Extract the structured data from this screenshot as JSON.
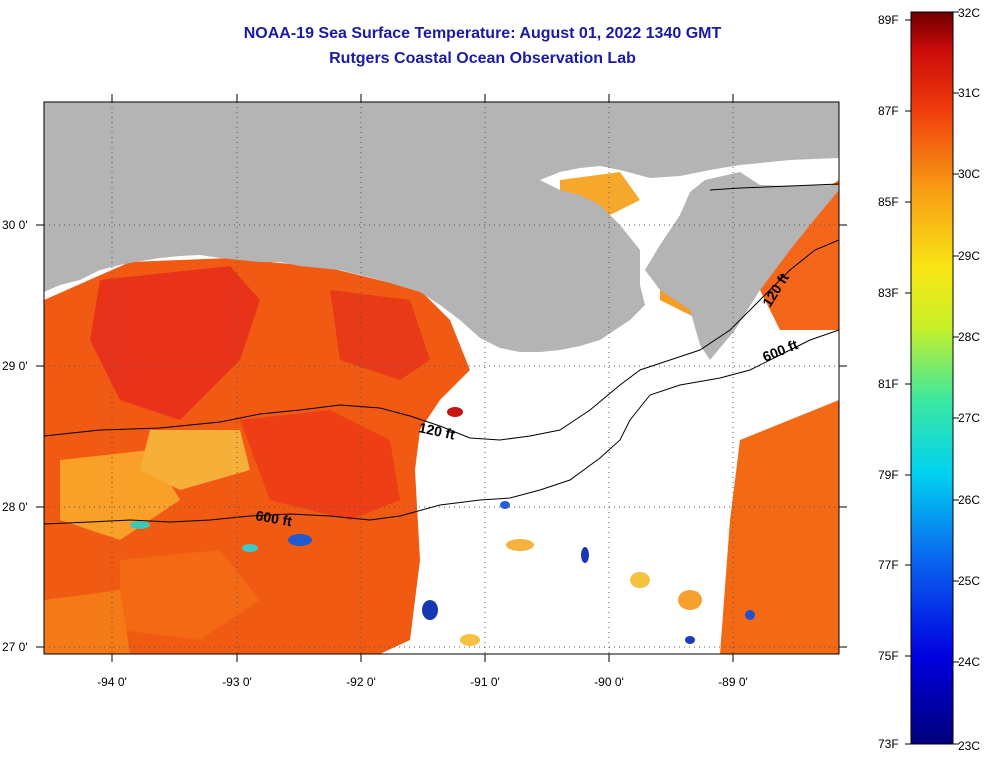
{
  "title": "NOAA-19 Sea Surface Temperature:  August 01, 2022 1340 GMT",
  "subtitle": "Rutgers Coastal Ocean Observation Lab",
  "map": {
    "lon_ticks": [
      "-94 0'",
      "-93 0'",
      "-92 0'",
      "-91 0'",
      "-90 0'",
      "-89 0'"
    ],
    "lat_ticks": [
      "30 0'",
      "29 0'",
      "28 0'",
      "27 0'"
    ],
    "contour_labels": [
      "120 ft",
      "600 ft",
      "120 ft",
      "600 ft"
    ],
    "colors": {
      "land": "#b4b4b4",
      "cloud": "#ffffff",
      "warm": "#f04a10",
      "hot": "#e8281c",
      "mid": "#f9a61f",
      "cool": "#2a6fd4"
    }
  },
  "colorbar": {
    "fahrenheit": [
      "89F",
      "87F",
      "85F",
      "83F",
      "81F",
      "79F",
      "77F",
      "75F",
      "73F"
    ],
    "celsius": [
      "32C",
      "31C",
      "30C",
      "29C",
      "28C",
      "27C",
      "26C",
      "25C",
      "24C",
      "23C"
    ]
  }
}
